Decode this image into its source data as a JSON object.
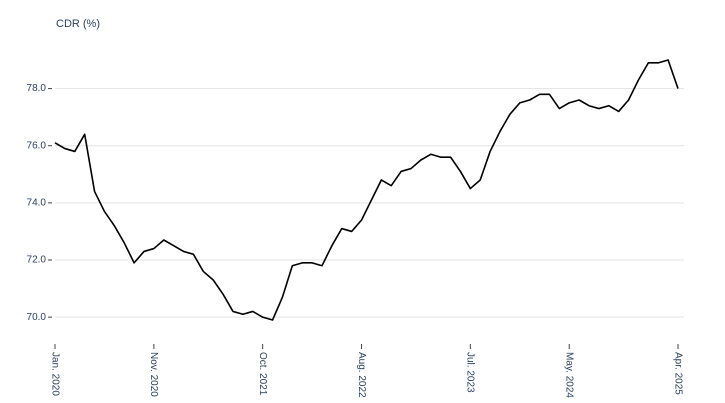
{
  "chart_data": {
    "type": "line",
    "title": "CDR (%)",
    "x": [
      "2020-01",
      "2020-02",
      "2020-03",
      "2020-04",
      "2020-05",
      "2020-06",
      "2020-07",
      "2020-08",
      "2020-09",
      "2020-10",
      "2020-11",
      "2020-12",
      "2021-01",
      "2021-02",
      "2021-03",
      "2021-04",
      "2021-05",
      "2021-06",
      "2021-07",
      "2021-08",
      "2021-09",
      "2021-10",
      "2021-11",
      "2021-12",
      "2022-01",
      "2022-02",
      "2022-03",
      "2022-04",
      "2022-05",
      "2022-06",
      "2022-07",
      "2022-08",
      "2022-09",
      "2022-10",
      "2022-11",
      "2022-12",
      "2023-01",
      "2023-02",
      "2023-03",
      "2023-04",
      "2023-05",
      "2023-06",
      "2023-07",
      "2023-08",
      "2023-09",
      "2023-10",
      "2023-11",
      "2023-12",
      "2024-01",
      "2024-02",
      "2024-03",
      "2024-04",
      "2024-05",
      "2024-06",
      "2024-07",
      "2024-08",
      "2024-09",
      "2024-10",
      "2024-11",
      "2024-12",
      "2025-01",
      "2025-02",
      "2025-03",
      "2025-04"
    ],
    "series": [
      {
        "name": "CDR (%)",
        "color": "#000000",
        "values": [
          76.1,
          75.9,
          75.8,
          76.4,
          74.4,
          73.7,
          73.2,
          72.6,
          71.9,
          72.3,
          72.4,
          72.7,
          72.5,
          72.3,
          72.2,
          71.6,
          71.3,
          70.8,
          70.2,
          70.1,
          70.2,
          70.0,
          69.9,
          70.7,
          71.8,
          71.9,
          71.9,
          71.8,
          72.5,
          73.1,
          73.0,
          73.4,
          74.1,
          74.8,
          74.6,
          75.1,
          75.2,
          75.5,
          75.7,
          75.6,
          75.6,
          75.1,
          74.5,
          74.8,
          75.8,
          76.5,
          77.1,
          77.5,
          77.6,
          77.8,
          77.8,
          77.3,
          77.5,
          77.6,
          77.4,
          77.3,
          77.4,
          77.2,
          77.6,
          78.3,
          78.9,
          78.9,
          79.0,
          78.0
        ]
      }
    ],
    "xlim": [
      "2020-01",
      "2025-04"
    ],
    "xticks": [
      {
        "value": "2020-01",
        "label": "Jan. 2020"
      },
      {
        "value": "2020-11",
        "label": "Nov. 2020"
      },
      {
        "value": "2021-10",
        "label": "Oct. 2021"
      },
      {
        "value": "2022-08",
        "label": "Aug. 2022"
      },
      {
        "value": "2023-07",
        "label": "Jul. 2023"
      },
      {
        "value": "2024-05",
        "label": "May. 2024"
      },
      {
        "value": "2025-04",
        "label": "Apr. 2025"
      }
    ],
    "ylim": [
      69.2,
      79.7
    ],
    "yticks": [
      {
        "value": 70,
        "label": "70.0"
      },
      {
        "value": 72,
        "label": "72.0"
      },
      {
        "value": 74,
        "label": "74.0"
      },
      {
        "value": 76,
        "label": "76.0"
      },
      {
        "value": 78,
        "label": "78.0"
      }
    ],
    "grid": true
  }
}
